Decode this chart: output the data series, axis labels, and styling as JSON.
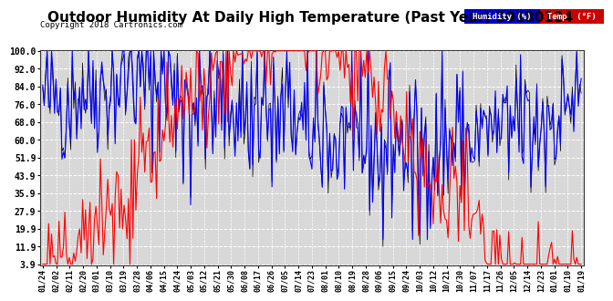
{
  "title": "Outdoor Humidity At Daily High Temperature (Past Year) 20180124",
  "copyright": "Copyright 2018 Cartronics.com",
  "yticks": [
    100.0,
    92.0,
    84.0,
    76.0,
    68.0,
    60.0,
    51.9,
    43.9,
    35.9,
    27.9,
    19.9,
    11.9,
    3.9
  ],
  "ylim_min": 3.9,
  "ylim_max": 100.0,
  "xtick_labels": [
    "01/24",
    "02/02",
    "02/11",
    "02/20",
    "03/01",
    "03/10",
    "03/19",
    "03/28",
    "04/06",
    "04/15",
    "04/24",
    "05/03",
    "05/12",
    "05/21",
    "05/30",
    "06/08",
    "06/17",
    "06/26",
    "07/05",
    "07/14",
    "07/23",
    "08/01",
    "08/10",
    "08/19",
    "08/28",
    "09/06",
    "09/15",
    "09/24",
    "10/03",
    "10/12",
    "10/21",
    "10/30",
    "11/07",
    "11/17",
    "11/26",
    "12/05",
    "12/14",
    "12/23",
    "01/01",
    "01/10",
    "01/19"
  ],
  "bg_color": "#ffffff",
  "plot_bg_color": "#d8d8d8",
  "grid_color": "#ffffff",
  "humidity_color": "#0000ff",
  "temp_color": "#ff0000",
  "black_color": "#000000",
  "title_fontsize": 11,
  "legend_humidity_bg": "#0000cc",
  "legend_temp_bg": "#cc0000"
}
